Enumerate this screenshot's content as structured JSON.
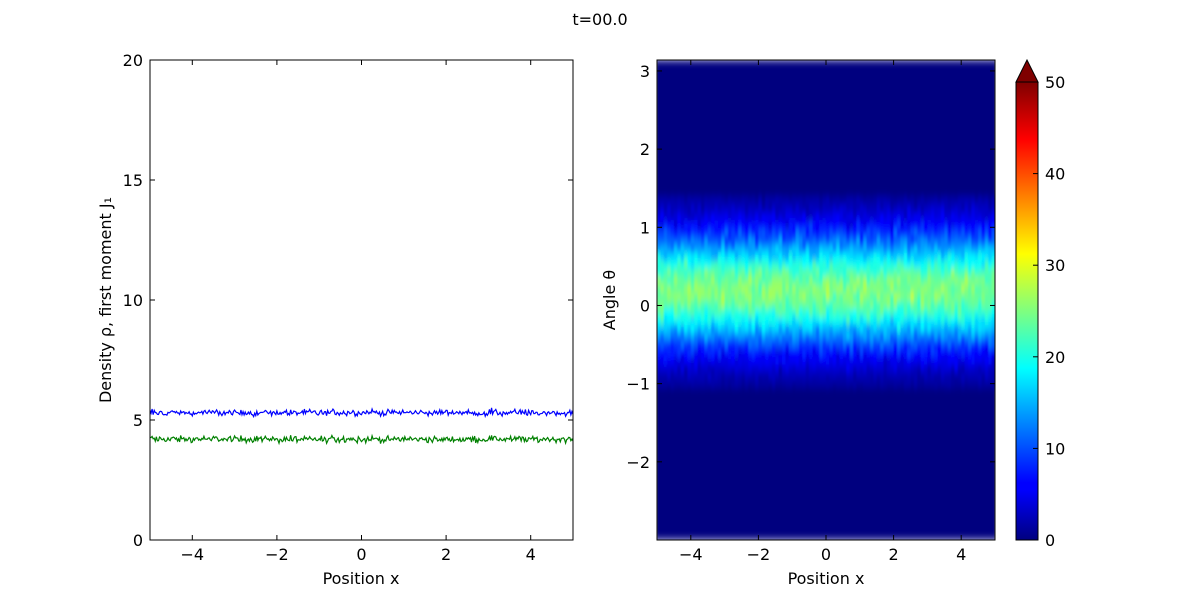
{
  "figure": {
    "title": "t=00.0"
  },
  "chart_data": [
    {
      "type": "line",
      "xlabel": "Position x",
      "ylabel": "Density ρ, first moment J₁",
      "xlim": [
        -5,
        5
      ],
      "ylim": [
        0,
        20
      ],
      "xticks": [
        -4,
        -2,
        0,
        2,
        4
      ],
      "yticks": [
        0,
        5,
        10,
        15,
        20
      ],
      "x_range": [
        -5,
        5
      ],
      "series": [
        {
          "color": "#0000ff",
          "mean": 5.3,
          "noise": 0.15
        },
        {
          "color": "#008000",
          "mean": 4.2,
          "noise": 0.15
        }
      ],
      "grid": false
    },
    {
      "type": "heatmap",
      "xlabel": "Position x",
      "ylabel": "Angle θ",
      "xlim": [
        -5,
        5
      ],
      "ylim": [
        -3.0,
        3.14
      ],
      "xticks": [
        -4,
        -2,
        0,
        2,
        4
      ],
      "yticks": [
        -2,
        -1,
        0,
        1,
        2,
        3
      ],
      "colormap": "jet",
      "colorbar": {
        "min": 0,
        "max": 50,
        "ticks": [
          0,
          10,
          20,
          30,
          40,
          50
        ],
        "extend": "max"
      },
      "profile": {
        "peak_theta": 0.2,
        "peak_value": 25,
        "width": 0.5,
        "noise": 3
      }
    }
  ]
}
